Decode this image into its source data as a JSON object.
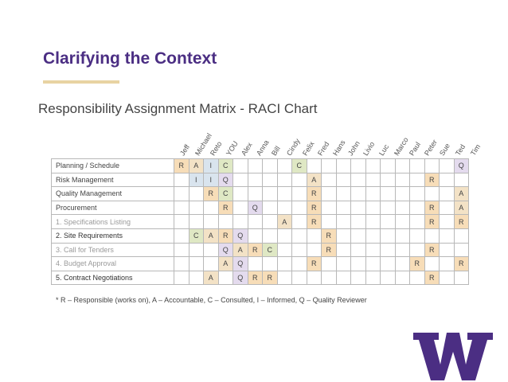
{
  "slide": {
    "title": "Clarifying the Context",
    "accent_color": "#e8d3a2",
    "brand_color": "#4b2e83"
  },
  "matrix": {
    "title": "Responsibility Assignment Matrix - RACI Chart",
    "columns": [
      "Jeff",
      "Michael",
      "Reto",
      "YOU",
      "Alex",
      "Anna",
      "Bill",
      "Cindy",
      "Felix",
      "Fred",
      "Hans",
      "John",
      "Livio",
      "Luc",
      "Marco",
      "Paul",
      "Peter",
      "Sue",
      "Ted",
      "Tim"
    ],
    "rows": [
      {
        "task": "Planning / Schedule",
        "faded": false,
        "bold": false,
        "cells": [
          "R",
          "A",
          "I",
          "C",
          "",
          "",
          "",
          "",
          "C",
          "",
          "",
          "",
          "",
          "",
          "",
          "",
          "",
          "",
          "",
          "Q"
        ]
      },
      {
        "task": "Risk Management",
        "faded": false,
        "bold": false,
        "cells": [
          "",
          "I",
          "I",
          "Q",
          "",
          "",
          "",
          "",
          "",
          "A",
          "",
          "",
          "",
          "",
          "",
          "",
          "",
          "R",
          "",
          ""
        ]
      },
      {
        "task": "Quality Management",
        "faded": false,
        "bold": false,
        "cells": [
          "",
          "",
          "R",
          "C",
          "",
          "",
          "",
          "",
          "",
          "R",
          "",
          "",
          "",
          "",
          "",
          "",
          "",
          "",
          "",
          "A"
        ]
      },
      {
        "task": "Procurement",
        "faded": false,
        "bold": false,
        "cells": [
          "",
          "",
          "",
          "R",
          "",
          "Q",
          "",
          "",
          "",
          "R",
          "",
          "",
          "",
          "",
          "",
          "",
          "",
          "R",
          "",
          "A"
        ]
      },
      {
        "task": "1. Specifications Listing",
        "faded": true,
        "bold": false,
        "cells": [
          "",
          "",
          "",
          "",
          "",
          "",
          "",
          "A",
          "",
          "R",
          "",
          "",
          "",
          "",
          "",
          "",
          "",
          "R",
          "",
          "R"
        ]
      },
      {
        "task": "2. Site Requirements",
        "faded": false,
        "bold": true,
        "cells": [
          "",
          "C",
          "A",
          "R",
          "Q",
          "",
          "",
          "",
          "",
          "",
          "R",
          "",
          "",
          "",
          "",
          "",
          "",
          "",
          "",
          ""
        ]
      },
      {
        "task": "3. Call for Tenders",
        "faded": true,
        "bold": false,
        "cells": [
          "",
          "",
          "",
          "Q",
          "A",
          "R",
          "C",
          "",
          "",
          "",
          "R",
          "",
          "",
          "",
          "",
          "",
          "",
          "R",
          "",
          ""
        ]
      },
      {
        "task": "4. Budget Approval",
        "faded": true,
        "bold": false,
        "cells": [
          "",
          "",
          "",
          "A",
          "Q",
          "",
          "",
          "",
          "",
          "R",
          "",
          "",
          "",
          "",
          "",
          "",
          "R",
          "",
          "",
          "R"
        ]
      },
      {
        "task": "5. Contract Negotiations",
        "faded": false,
        "bold": true,
        "cells": [
          "",
          "",
          "A",
          "",
          "Q",
          "R",
          "R",
          "",
          "",
          "",
          "",
          "",
          "",
          "",
          "",
          "",
          "",
          "R",
          "",
          ""
        ]
      }
    ],
    "colors": {
      "R": "#f7ddb8",
      "A": "#f3e2c6",
      "C": "#dfe8c4",
      "I": "#d9e4ee",
      "Q": "#e4dbee"
    },
    "legend": "* R – Responsible (works on), A – Accountable, C – Consulted, I – Informed, Q – Quality Reviewer"
  },
  "logo": {
    "name": "uw-w-logo-icon",
    "letter": "W",
    "color": "#4b2e83"
  }
}
